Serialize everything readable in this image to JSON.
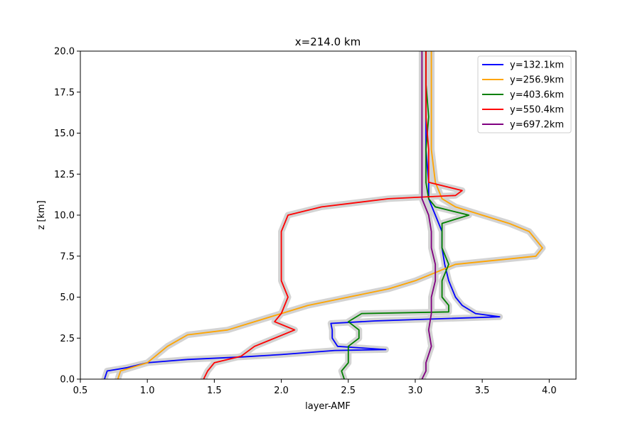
{
  "chart_data": {
    "type": "line",
    "title": "x=214.0 km",
    "xlabel": "layer-AMF",
    "ylabel": "z [km]",
    "xlim": [
      0.5,
      4.2
    ],
    "ylim": [
      0,
      20
    ],
    "xticks": [
      "0.5",
      "1.0",
      "1.5",
      "2.0",
      "2.5",
      "3.0",
      "3.5",
      "4.0"
    ],
    "yticks": [
      "0.0",
      "2.5",
      "5.0",
      "7.5",
      "10.0",
      "12.5",
      "15.0",
      "17.5",
      "20.0"
    ],
    "grid": false,
    "legend_position": "top-right",
    "uncertainty_band_color": "#d3d3d3",
    "series": [
      {
        "name": "y=132.1km",
        "color": "#0000ff",
        "points": [
          [
            0.68,
            0
          ],
          [
            0.7,
            0.5
          ],
          [
            0.85,
            0.7
          ],
          [
            1.0,
            1.0
          ],
          [
            1.3,
            1.2
          ],
          [
            1.7,
            1.35
          ],
          [
            2.0,
            1.5
          ],
          [
            2.4,
            1.75
          ],
          [
            2.78,
            1.8
          ],
          [
            2.42,
            2.0
          ],
          [
            2.38,
            2.5
          ],
          [
            2.38,
            3.0
          ],
          [
            2.37,
            3.4
          ],
          [
            2.7,
            3.55
          ],
          [
            3.63,
            3.8
          ],
          [
            3.45,
            4.0
          ],
          [
            3.35,
            4.5
          ],
          [
            3.3,
            5.0
          ],
          [
            3.25,
            6.0
          ],
          [
            3.22,
            7.0
          ],
          [
            3.2,
            8.0
          ],
          [
            3.2,
            9.0
          ],
          [
            3.15,
            10.0
          ],
          [
            3.1,
            11.0
          ],
          [
            3.1,
            12.0
          ],
          [
            3.08,
            14.0
          ],
          [
            3.08,
            20.0
          ]
        ]
      },
      {
        "name": "y=256.9km",
        "color": "#ffa500",
        "points": [
          [
            0.78,
            0
          ],
          [
            0.8,
            0.5
          ],
          [
            1.0,
            1.0
          ],
          [
            1.15,
            2.0
          ],
          [
            1.3,
            2.7
          ],
          [
            1.6,
            3.0
          ],
          [
            1.8,
            3.5
          ],
          [
            2.0,
            4.0
          ],
          [
            2.2,
            4.5
          ],
          [
            2.5,
            5.0
          ],
          [
            2.8,
            5.5
          ],
          [
            3.0,
            6.0
          ],
          [
            3.15,
            6.5
          ],
          [
            3.3,
            7.0
          ],
          [
            3.9,
            7.5
          ],
          [
            3.95,
            8.0
          ],
          [
            3.9,
            8.5
          ],
          [
            3.85,
            9.0
          ],
          [
            3.7,
            9.5
          ],
          [
            3.5,
            10.0
          ],
          [
            3.3,
            10.5
          ],
          [
            3.2,
            11.0
          ],
          [
            3.15,
            12.0
          ],
          [
            3.12,
            14.0
          ],
          [
            3.12,
            16.0
          ],
          [
            3.12,
            18.0
          ],
          [
            3.12,
            20.0
          ]
        ]
      },
      {
        "name": "y=403.6km",
        "color": "#008000",
        "points": [
          [
            2.47,
            0
          ],
          [
            2.45,
            0.5
          ],
          [
            2.5,
            1.0
          ],
          [
            2.5,
            2.0
          ],
          [
            2.58,
            2.5
          ],
          [
            2.58,
            3.0
          ],
          [
            2.5,
            3.5
          ],
          [
            2.6,
            4.0
          ],
          [
            3.25,
            4.1
          ],
          [
            3.25,
            4.5
          ],
          [
            3.2,
            5.0
          ],
          [
            3.2,
            6.0
          ],
          [
            3.25,
            7.0
          ],
          [
            3.2,
            8.0
          ],
          [
            3.2,
            9.0
          ],
          [
            3.2,
            9.5
          ],
          [
            3.4,
            10.0
          ],
          [
            3.15,
            10.5
          ],
          [
            3.1,
            11.0
          ],
          [
            3.08,
            12.0
          ],
          [
            3.08,
            14.0
          ],
          [
            3.1,
            16.0
          ],
          [
            3.08,
            18.0
          ],
          [
            3.08,
            20.0
          ]
        ]
      },
      {
        "name": "y=550.4km",
        "color": "#ff0000",
        "points": [
          [
            1.42,
            0
          ],
          [
            1.45,
            0.5
          ],
          [
            1.5,
            1.0
          ],
          [
            1.7,
            1.4
          ],
          [
            1.8,
            2.0
          ],
          [
            1.95,
            2.5
          ],
          [
            2.1,
            3.0
          ],
          [
            1.95,
            3.5
          ],
          [
            2.0,
            4.0
          ],
          [
            2.05,
            5.0
          ],
          [
            2.0,
            6.0
          ],
          [
            2.0,
            7.0
          ],
          [
            2.0,
            8.0
          ],
          [
            2.0,
            9.0
          ],
          [
            2.05,
            10.0
          ],
          [
            2.3,
            10.5
          ],
          [
            2.8,
            11.0
          ],
          [
            3.3,
            11.2
          ],
          [
            3.35,
            11.5
          ],
          [
            3.1,
            12.0
          ],
          [
            3.1,
            14.0
          ],
          [
            3.08,
            16.0
          ],
          [
            3.08,
            18.0
          ],
          [
            3.08,
            20.0
          ]
        ]
      },
      {
        "name": "y=697.2km",
        "color": "#800080",
        "points": [
          [
            3.05,
            0
          ],
          [
            3.08,
            0.5
          ],
          [
            3.08,
            1.0
          ],
          [
            3.12,
            2.0
          ],
          [
            3.1,
            3.0
          ],
          [
            3.12,
            4.0
          ],
          [
            3.12,
            5.0
          ],
          [
            3.15,
            6.0
          ],
          [
            3.15,
            7.0
          ],
          [
            3.12,
            8.0
          ],
          [
            3.12,
            9.0
          ],
          [
            3.1,
            10.0
          ],
          [
            3.05,
            11.0
          ],
          [
            3.05,
            12.0
          ],
          [
            3.05,
            14.0
          ],
          [
            3.05,
            16.0
          ],
          [
            3.05,
            18.0
          ],
          [
            3.05,
            20.0
          ]
        ]
      }
    ]
  }
}
